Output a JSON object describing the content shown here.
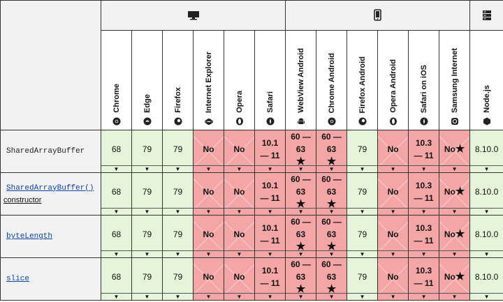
{
  "platforms": [
    {
      "name": "desktop",
      "icon": "monitor-icon"
    },
    {
      "name": "mobile",
      "icon": "phone-icon"
    },
    {
      "name": "server",
      "icon": "server-icon"
    }
  ],
  "browsers": [
    {
      "label": "Chrome",
      "icon": "chrome-icon"
    },
    {
      "label": "Edge",
      "icon": "edge-icon"
    },
    {
      "label": "Firefox",
      "icon": "firefox-icon"
    },
    {
      "label": "Internet Explorer",
      "icon": "ie-icon"
    },
    {
      "label": "Opera",
      "icon": "opera-icon"
    },
    {
      "label": "Safari",
      "icon": "safari-icon"
    },
    {
      "label": "WebView Android",
      "icon": "android-icon"
    },
    {
      "label": "Chrome Android",
      "icon": "chrome-icon"
    },
    {
      "label": "Firefox Android",
      "icon": "firefox-icon"
    },
    {
      "label": "Opera Android",
      "icon": "opera-icon"
    },
    {
      "label": "Safari on iOS",
      "icon": "safari-icon"
    },
    {
      "label": "Samsung Internet",
      "icon": "samsung-icon"
    },
    {
      "label": "Node.js",
      "icon": "nodejs-icon"
    }
  ],
  "rows": [
    {
      "feature": "SharedArrayBuffer",
      "cells": [
        {
          "text": "68",
          "support": "yes"
        },
        {
          "text": "79",
          "support": "yes"
        },
        {
          "text": "79",
          "support": "yes"
        },
        {
          "text": "No",
          "support": "no"
        },
        {
          "text": "No",
          "support": "no"
        },
        {
          "text": "10.1 — 11",
          "support": "partial"
        },
        {
          "text": "60 — 63",
          "support": "partial",
          "star": "★"
        },
        {
          "text": "60 — 63",
          "support": "partial",
          "star": "★"
        },
        {
          "text": "79",
          "support": "yes"
        },
        {
          "text": "No",
          "support": "no"
        },
        {
          "text": "10.3 — 11",
          "support": "partial"
        },
        {
          "text": "No",
          "support": "no",
          "star": "★"
        },
        {
          "text": "8.10.0",
          "support": "yes"
        }
      ]
    },
    {
      "feature": "SharedArrayBuffer()",
      "feature_suffix": "constructor",
      "cells": [
        {
          "text": "68",
          "support": "yes"
        },
        {
          "text": "79",
          "support": "yes"
        },
        {
          "text": "79",
          "support": "yes"
        },
        {
          "text": "No",
          "support": "no"
        },
        {
          "text": "No",
          "support": "no"
        },
        {
          "text": "10.1 — 11",
          "support": "partial"
        },
        {
          "text": "60 — 63",
          "support": "partial",
          "star": "★"
        },
        {
          "text": "60 — 63",
          "support": "partial",
          "star": "★"
        },
        {
          "text": "79",
          "support": "yes"
        },
        {
          "text": "No",
          "support": "no"
        },
        {
          "text": "10.3 — 11",
          "support": "partial"
        },
        {
          "text": "No",
          "support": "no",
          "star": "★"
        },
        {
          "text": "8.10.0",
          "support": "yes"
        }
      ]
    },
    {
      "feature": "byteLength",
      "cells": [
        {
          "text": "68",
          "support": "yes"
        },
        {
          "text": "79",
          "support": "yes"
        },
        {
          "text": "79",
          "support": "yes"
        },
        {
          "text": "No",
          "support": "no"
        },
        {
          "text": "No",
          "support": "no"
        },
        {
          "text": "10.1 — 11",
          "support": "partial"
        },
        {
          "text": "60 — 63",
          "support": "partial",
          "star": "★"
        },
        {
          "text": "60 — 63",
          "support": "partial",
          "star": "★"
        },
        {
          "text": "79",
          "support": "yes"
        },
        {
          "text": "No",
          "support": "no"
        },
        {
          "text": "10.3 — 11",
          "support": "partial"
        },
        {
          "text": "No",
          "support": "no",
          "star": "★"
        },
        {
          "text": "8.10.0",
          "support": "yes"
        }
      ]
    },
    {
      "feature": "slice",
      "cells": [
        {
          "text": "68",
          "support": "yes"
        },
        {
          "text": "79",
          "support": "yes"
        },
        {
          "text": "79",
          "support": "yes"
        },
        {
          "text": "No",
          "support": "no"
        },
        {
          "text": "No",
          "support": "no"
        },
        {
          "text": "10.1 — 11",
          "support": "partial"
        },
        {
          "text": "60 — 63",
          "support": "partial",
          "star": "★"
        },
        {
          "text": "60 — 63",
          "support": "partial",
          "star": "★"
        },
        {
          "text": "79",
          "support": "yes"
        },
        {
          "text": "No",
          "support": "no"
        },
        {
          "text": "10.3 — 11",
          "support": "partial"
        },
        {
          "text": "No",
          "support": "no",
          "star": "★"
        },
        {
          "text": "8.10.0",
          "support": "yes"
        }
      ]
    }
  ],
  "colors": {
    "yes": "#e6f5d9",
    "no": "#f4a6a6",
    "header": "#f2f2f2",
    "link": "#0645ad"
  }
}
